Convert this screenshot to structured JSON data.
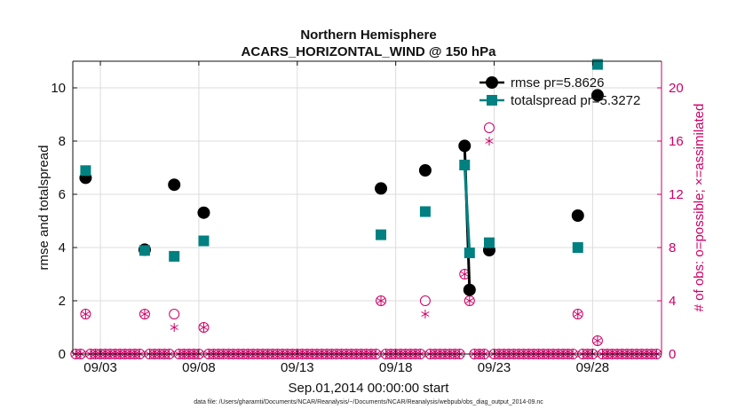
{
  "chart_data": {
    "type": "scatter",
    "title": "Northern Hemisphere",
    "subtitle": "ACARS_HORIZONTAL_WIND @ 150 hPa",
    "xlabel": "Sep.01,2014 00:00:00 start",
    "ylabel_left": "rmse and totalspread",
    "ylabel_right": "# of obs: o=possible; ×=assimilated",
    "x_unit": "days since Sep.01,2014 00:00",
    "xlim": [
      0.6,
      30.5
    ],
    "ylim_left": [
      0,
      11
    ],
    "ylim_right": [
      0,
      22
    ],
    "grid": true,
    "x_ticks": [
      {
        "x": 2,
        "label": "09/03"
      },
      {
        "x": 7,
        "label": "09/08"
      },
      {
        "x": 12,
        "label": "09/13"
      },
      {
        "x": 17,
        "label": "09/18"
      },
      {
        "x": 22,
        "label": "09/23"
      },
      {
        "x": 27,
        "label": "09/28"
      }
    ],
    "y_ticks_left": [
      0,
      2,
      4,
      6,
      8,
      10
    ],
    "y_ticks_right": [
      0,
      4,
      8,
      12,
      16,
      20
    ],
    "legend_position": "top-right",
    "colors": {
      "rmse": "#000000",
      "spread": "#008080",
      "obs": "#cc0066",
      "axis": "#111111"
    },
    "series": [
      {
        "name": "rmse pr=5.8626",
        "axis": "left",
        "marker": "filled-circle",
        "points": [
          [
            1.25,
            6.62
          ],
          [
            4.25,
            3.92
          ],
          [
            5.75,
            6.36
          ],
          [
            7.25,
            5.31
          ],
          [
            16.25,
            6.22
          ],
          [
            18.5,
            6.9
          ],
          [
            20.5,
            7.82
          ],
          [
            20.75,
            2.41
          ],
          [
            21.75,
            3.9
          ],
          [
            26.25,
            5.2
          ],
          [
            27.25,
            9.72
          ]
        ],
        "line_segments": [
          [
            20.5,
            20.75
          ]
        ]
      },
      {
        "name": "totalspread pr=5.3272",
        "axis": "left",
        "marker": "filled-square",
        "points": [
          [
            1.25,
            6.89
          ],
          [
            4.25,
            3.89
          ],
          [
            5.75,
            3.67
          ],
          [
            7.25,
            4.25
          ],
          [
            16.25,
            4.48
          ],
          [
            18.5,
            5.35
          ],
          [
            20.5,
            7.1
          ],
          [
            20.75,
            3.8
          ],
          [
            21.75,
            4.18
          ],
          [
            26.25,
            4.0
          ],
          [
            27.25,
            10.88
          ]
        ],
        "line_segments": [
          [
            20.5,
            20.75
          ]
        ]
      },
      {
        "name": "obs possible",
        "axis": "right",
        "marker": "open-circle",
        "x_range": [
          0.75,
          30.25
        ],
        "x_step": 0.25,
        "default": 0,
        "nonzero": [
          [
            1.25,
            3
          ],
          [
            4.25,
            3
          ],
          [
            5.75,
            3
          ],
          [
            7.25,
            2
          ],
          [
            16.25,
            4
          ],
          [
            18.5,
            4
          ],
          [
            20.5,
            6
          ],
          [
            20.75,
            4
          ],
          [
            21.75,
            17
          ],
          [
            26.25,
            3
          ],
          [
            27.25,
            1
          ]
        ]
      },
      {
        "name": "obs assimilated",
        "axis": "right",
        "marker": "asterisk",
        "x_range": [
          0.75,
          30.25
        ],
        "x_step": 0.25,
        "default": 0,
        "nonzero": [
          [
            1.25,
            3
          ],
          [
            4.25,
            3
          ],
          [
            5.75,
            2
          ],
          [
            7.25,
            2
          ],
          [
            16.25,
            4
          ],
          [
            18.5,
            3
          ],
          [
            20.5,
            6
          ],
          [
            20.75,
            4
          ],
          [
            21.75,
            16
          ],
          [
            26.25,
            3
          ],
          [
            27.25,
            1
          ]
        ]
      }
    ],
    "footnote": "data file: /Users/gharamti/Documents/NCAR/Reanalysis/~/Documents/NCAR/Reanalysis/webpub/obs_diag_output_2014-09.nc"
  }
}
